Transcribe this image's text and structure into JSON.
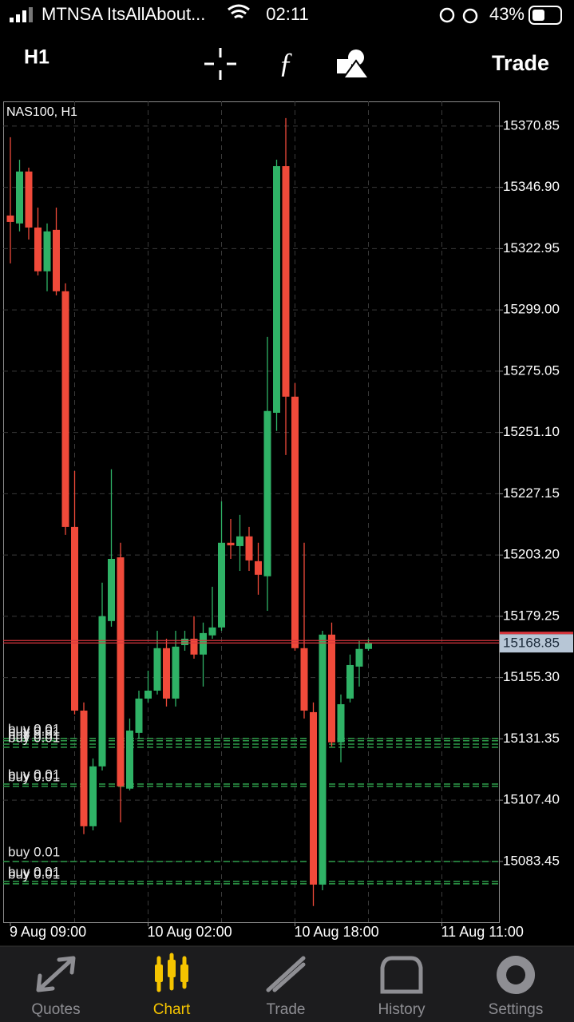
{
  "status_bar": {
    "carrier": "MTNSA ItsAllAbout...",
    "time": "02:11",
    "battery": "43%"
  },
  "toolbar": {
    "timeframe": "H1",
    "action": "Trade"
  },
  "chart_data": {
    "type": "candlestick",
    "title": "NAS100, H1",
    "categories": [
      "9 Aug 09:00",
      null,
      null,
      null,
      null,
      null,
      null,
      null,
      null,
      null,
      null,
      null,
      null,
      null,
      null,
      "10 Aug 02:00",
      null,
      null,
      null,
      null,
      null,
      null,
      null,
      null,
      null,
      null,
      null,
      null,
      null,
      null,
      null,
      "10 Aug 18:00",
      null,
      null,
      null,
      null,
      null,
      null,
      null,
      null,
      null,
      null,
      null,
      null,
      null,
      null,
      null,
      "11 Aug 11:00",
      null,
      null,
      null,
      null,
      null,
      null
    ],
    "open": [
      15335.9,
      15332.8,
      15353.1,
      15331.2,
      15314.1,
      15330.3,
      15306.3,
      15214.2,
      15142.4,
      15097.2,
      15120.6,
      15177.4,
      15202.3,
      15111.9,
      15133.7,
      15147.1,
      15150.2,
      15166.8,
      15147.1,
      15168.0,
      15170.5,
      15164.3,
      15171.8,
      15174.9,
      15208.0,
      15206.7,
      15210.5,
      15200.8,
      15194.9,
      15258.8,
      15355.2,
      15265.1,
      15166.8,
      15141.8,
      15074.4,
      15172.1,
      15130.0,
      15147.1,
      15159.6,
      15166.5,
      null,
      null,
      null,
      null,
      null,
      null,
      null,
      null,
      null,
      null,
      null,
      null,
      null,
      null
    ],
    "high": [
      15366.5,
      15357.7,
      15354.6,
      15339.0,
      15332.8,
      15339.0,
      15309.4,
      15236.0,
      15145.6,
      15123.7,
      15192.4,
      15236.7,
      15208.0,
      15139.3,
      15150.2,
      15158.0,
      15173.6,
      15170.5,
      15173.6,
      15173.6,
      15179.3,
      15176.8,
      15190.8,
      15224.2,
      15217.3,
      15218.9,
      15214.2,
      15208.0,
      15288.5,
      15357.7,
      15374.0,
      15270.4,
      15208.0,
      15145.6,
      15173.6,
      15176.8,
      15148.7,
      15164.3,
      15169.6,
      15170.5,
      null,
      null,
      null,
      null,
      null,
      null,
      null,
      null,
      null,
      null,
      null,
      null,
      null,
      null
    ],
    "low": [
      15317.2,
      15329.7,
      15326.5,
      15312.5,
      15306.3,
      15304.7,
      15211.1,
      15140.9,
      15094.1,
      15095.6,
      15119.0,
      15175.2,
      15098.7,
      15111.2,
      15131.5,
      15145.6,
      15148.7,
      15144.0,
      15144.0,
      15165.8,
      15162.7,
      15151.8,
      15170.5,
      15173.6,
      15201.7,
      15197.0,
      15197.0,
      15187.7,
      15181.4,
      15251.7,
      15242.3,
      15165.8,
      15139.3,
      15066.0,
      15072.2,
      15128.4,
      15122.2,
      15145.6,
      15151.8,
      15165.8,
      null,
      null,
      null,
      null,
      null,
      null,
      null,
      null,
      null,
      null,
      null,
      null,
      null,
      null
    ],
    "close": [
      15333.4,
      15353.1,
      15331.2,
      15314.1,
      15329.7,
      15306.3,
      15214.2,
      15142.4,
      15097.2,
      15120.6,
      15179.3,
      15201.7,
      15112.8,
      15134.6,
      15147.1,
      15150.2,
      15166.8,
      15147.1,
      15167.4,
      15170.5,
      15164.3,
      15172.7,
      15174.9,
      15208.0,
      15207.0,
      15210.5,
      15201.1,
      15195.5,
      15259.5,
      15355.2,
      15265.1,
      15166.8,
      15142.4,
      15074.4,
      15172.1,
      15130.0,
      15144.9,
      15160.2,
      15166.5,
      15168.85,
      null,
      null,
      null,
      null,
      null,
      null,
      null,
      null,
      null,
      null,
      null,
      null,
      null,
      null
    ],
    "up_color": "#2fb266",
    "down_color": "#f04a3a",
    "ylim": [
      15059.7,
      15380.5
    ],
    "yticks": [
      15370.85,
      {
        "value": 15346.9,
        "label": "15346.90"
      },
      15322.95,
      {
        "value": 15299,
        "label": "15299.00"
      },
      15275.05,
      {
        "value": 15251.1,
        "label": "15251.10"
      },
      15227.15,
      {
        "value": 15203.2,
        "label": "15203.20"
      },
      15179.25,
      {
        "value": 15155.3,
        "label": "15155.30"
      },
      15131.35,
      {
        "value": 15107.4,
        "label": "15107.40"
      },
      15083.45
    ],
    "grid": true,
    "last_price": 15168.85,
    "orders": [
      {
        "label": "buy 0.01",
        "price": 15131.5
      },
      {
        "label": "buy 0.01",
        "price": 15130.6
      },
      {
        "label": "buy 0.01",
        "price": 15129.3
      },
      {
        "label": "buy 0.01",
        "price": 15128.1
      },
      {
        "label": "buy 0.01",
        "price": 15113.7
      },
      {
        "label": "buy 0.01",
        "price": 15112.8
      },
      {
        "label": "buy 0.01",
        "price": 15083.4
      },
      {
        "label": "buy 0.01",
        "price": 15075.6
      },
      {
        "label": "buy 0.01",
        "price": 15074.7
      }
    ]
  },
  "tab_bar": {
    "tabs": [
      "Quotes",
      "Chart",
      "Trade",
      "History",
      "Settings"
    ],
    "active": "Chart"
  }
}
